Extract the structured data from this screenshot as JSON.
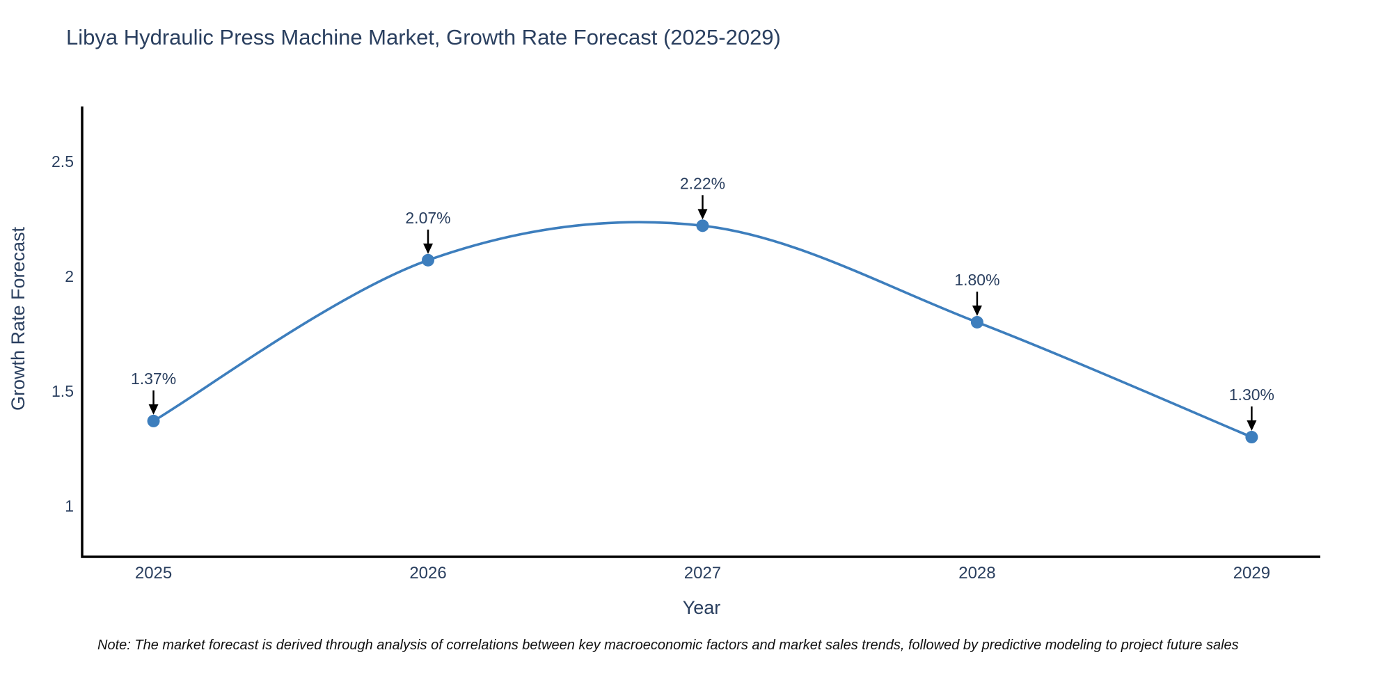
{
  "chart_data": {
    "type": "line",
    "title": "Libya Hydraulic Press Machine Market, Growth Rate Forecast (2025-2029)",
    "xlabel": "Year",
    "ylabel": "Growth Rate Forecast",
    "x": [
      2025,
      2026,
      2027,
      2028,
      2029
    ],
    "x_tick_labels": [
      "2025",
      "2026",
      "2027",
      "2028",
      "2029"
    ],
    "values": [
      1.37,
      2.07,
      2.22,
      1.8,
      1.3
    ],
    "point_labels": [
      "1.37%",
      "2.07%",
      "2.22%",
      "1.80%",
      "1.30%"
    ],
    "y_ticks": [
      1,
      1.5,
      2,
      2.5
    ],
    "y_tick_labels": [
      "1",
      "1.5",
      "2",
      "2.5"
    ],
    "xlim": [
      2024.74,
      2029.25
    ],
    "ylim": [
      0.779,
      2.739
    ],
    "line_shape": "spline",
    "grid": false,
    "legend": false,
    "colors": {
      "line": "#3d7ebd",
      "marker": "#3d7ebd",
      "text": "#2a3f5f",
      "axis": "#000000",
      "arrow": "#000000",
      "note_text": "#111111"
    },
    "note": "Note: The market forecast is derived through analysis of correlations between key macroeconomic factors and market sales trends, followed by predictive modeling to project future sales"
  }
}
